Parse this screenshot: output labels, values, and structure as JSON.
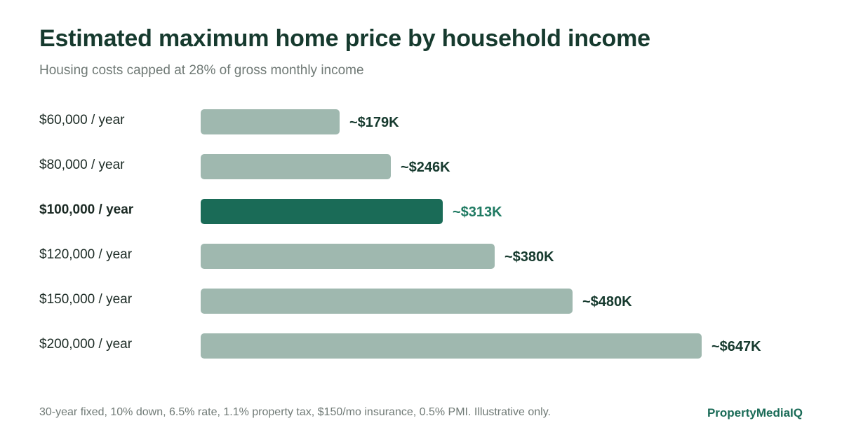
{
  "header": {
    "title": "Estimated maximum home price by household income",
    "subtitle": "Housing costs capped at 28% of gross monthly income"
  },
  "footer": {
    "note": "30-year fixed, 10% down, 6.5% rate, 1.1% property tax, $150/mo insurance, 0.5% PMI. Illustrative only.",
    "brand": "PropertyMediaIQ"
  },
  "colors": {
    "bar_default": "#9fb8af",
    "bar_highlight": "#1a6b57",
    "title": "#163a2e",
    "value_highlight": "#1f7a62"
  },
  "chart_data": {
    "type": "bar",
    "orientation": "horizontal",
    "title": "Estimated maximum home price by household income",
    "subtitle": "Housing costs capped at 28% of gross monthly income",
    "categories": [
      "$60,000 / year",
      "$80,000 / year",
      "$100,000 / year",
      "$120,000 / year",
      "$150,000 / year",
      "$200,000 / year"
    ],
    "values": [
      179,
      246,
      313,
      380,
      480,
      647
    ],
    "value_labels": [
      "~$179K",
      "~$246K",
      "~$313K",
      "~$380K",
      "~$480K",
      "~$647K"
    ],
    "unit": "thousand USD",
    "highlight_index": 2,
    "xlim": [
      0,
      647
    ],
    "grid": false,
    "legend": "none"
  }
}
